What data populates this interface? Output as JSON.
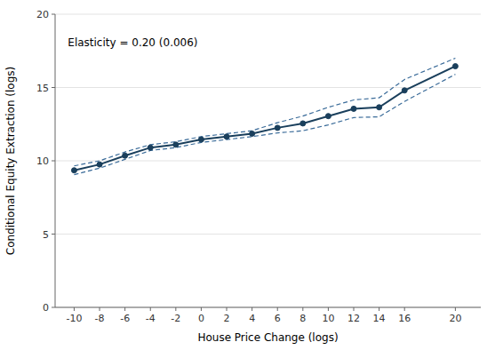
{
  "chart_data": {
    "type": "line",
    "x": [
      -10,
      -8,
      -6,
      -4,
      -2,
      0,
      2,
      4,
      6,
      8,
      10,
      12,
      14,
      16,
      20
    ],
    "series": [
      {
        "color": "#3a6b99",
        "line_style": "dashed",
        "values": [
          9.65,
          10.0,
          10.6,
          11.1,
          11.3,
          11.65,
          11.85,
          12.05,
          12.6,
          13.05,
          13.65,
          14.15,
          14.3,
          15.55,
          17.0
        ]
      },
      {
        "color": "#3a6b99",
        "line_style": "dashed",
        "values": [
          9.05,
          9.5,
          10.1,
          10.7,
          10.9,
          11.25,
          11.45,
          11.65,
          11.9,
          12.05,
          12.45,
          12.95,
          13.0,
          14.05,
          15.9
        ]
      },
      {
        "color": "#1a3f5c",
        "line_style": "solid",
        "marker": "circle",
        "values": [
          9.35,
          9.75,
          10.35,
          10.9,
          11.1,
          11.45,
          11.65,
          11.85,
          12.25,
          12.55,
          13.05,
          13.55,
          13.65,
          14.8,
          16.45
        ]
      }
    ],
    "annotations": [
      {
        "text": "Elasticity = 0.20 (0.006)",
        "x": -10.5,
        "y": 17.8
      }
    ],
    "xlabel": "House Price Change (logs)",
    "ylabel": "Conditional Equity Extraction (logs)",
    "xlim": [
      -11.5,
      22
    ],
    "ylim": [
      0,
      20
    ],
    "xticks": [
      -10,
      -8,
      -6,
      -4,
      -2,
      0,
      2,
      4,
      6,
      8,
      10,
      12,
      14,
      16,
      20
    ],
    "yticks": [
      0,
      5,
      10,
      15,
      20
    ],
    "grid": true
  }
}
